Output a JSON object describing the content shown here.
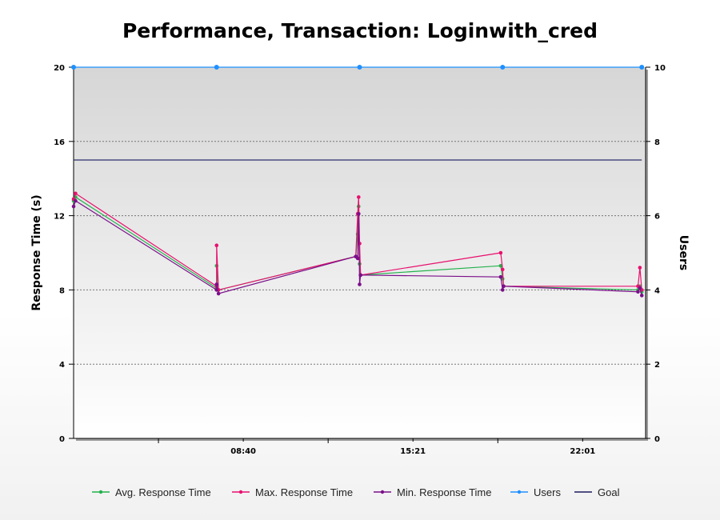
{
  "chart_data": {
    "type": "line",
    "title": "Performance, Transaction: Loginwith_cred",
    "ylabel": "Response Time (s)",
    "y2label": "Users",
    "ylim": [
      0,
      20
    ],
    "y2lim": [
      0,
      10
    ],
    "yticks": [
      "0",
      "4",
      "8",
      "12",
      "16",
      "20"
    ],
    "y2ticks": [
      "0",
      "2",
      "4",
      "6",
      "8",
      "10"
    ],
    "xticks": [
      {
        "label": "08:40",
        "x": 8.9
      },
      {
        "label": "15:21",
        "x": 17.8
      },
      {
        "label": "22:01",
        "x": 26.7
      }
    ],
    "xlim": [
      0,
      30
    ],
    "grid": true,
    "legend_position": "bottom",
    "series": [
      {
        "name": "Avg. Response Time",
        "color": "#22b14c",
        "axis": "left",
        "points": [
          [
            0.0,
            12.8
          ],
          [
            0.1,
            13.0
          ],
          [
            7.5,
            8.1
          ],
          [
            7.5,
            9.3
          ],
          [
            7.6,
            8.0
          ],
          [
            14.8,
            9.8
          ],
          [
            14.9,
            11.0
          ],
          [
            14.95,
            12.5
          ],
          [
            15.0,
            9.4
          ],
          [
            15.05,
            8.8
          ],
          [
            22.4,
            9.3
          ],
          [
            22.5,
            8.6
          ],
          [
            22.55,
            8.2
          ],
          [
            29.6,
            8.0
          ],
          [
            29.7,
            8.2
          ],
          [
            29.8,
            7.9
          ]
        ]
      },
      {
        "name": "Max. Response Time",
        "color": "#e8106e",
        "axis": "left",
        "points": [
          [
            0.0,
            12.9
          ],
          [
            0.1,
            13.2
          ],
          [
            7.5,
            8.2
          ],
          [
            7.5,
            10.4
          ],
          [
            7.6,
            8.0
          ],
          [
            14.8,
            9.8
          ],
          [
            14.9,
            12.1
          ],
          [
            14.95,
            13.0
          ],
          [
            15.0,
            10.5
          ],
          [
            15.05,
            8.8
          ],
          [
            22.4,
            10.0
          ],
          [
            22.5,
            9.1
          ],
          [
            22.55,
            8.2
          ],
          [
            29.6,
            8.2
          ],
          [
            29.7,
            9.2
          ],
          [
            29.8,
            8.0
          ]
        ]
      },
      {
        "name": "Min. Response Time",
        "color": "#7b0f8a",
        "axis": "left",
        "points": [
          [
            0.0,
            12.5
          ],
          [
            0.1,
            12.8
          ],
          [
            7.5,
            8.0
          ],
          [
            7.5,
            8.3
          ],
          [
            7.6,
            7.8
          ],
          [
            14.8,
            9.8
          ],
          [
            14.9,
            9.7
          ],
          [
            14.95,
            12.1
          ],
          [
            15.0,
            8.3
          ],
          [
            15.05,
            8.8
          ],
          [
            22.4,
            8.7
          ],
          [
            22.5,
            8.0
          ],
          [
            22.55,
            8.2
          ],
          [
            29.6,
            7.9
          ],
          [
            29.7,
            8.1
          ],
          [
            29.8,
            7.7
          ]
        ]
      },
      {
        "name": "Users",
        "color": "#1e90ff",
        "axis": "right",
        "points": [
          [
            0.0,
            10
          ],
          [
            7.5,
            10
          ],
          [
            15.0,
            10
          ],
          [
            22.5,
            10
          ],
          [
            29.8,
            10
          ]
        ]
      },
      {
        "name": "Goal",
        "color": "#1a1a5e",
        "axis": "left",
        "points": [
          [
            0.0,
            15
          ],
          [
            29.8,
            15
          ]
        ]
      }
    ]
  }
}
